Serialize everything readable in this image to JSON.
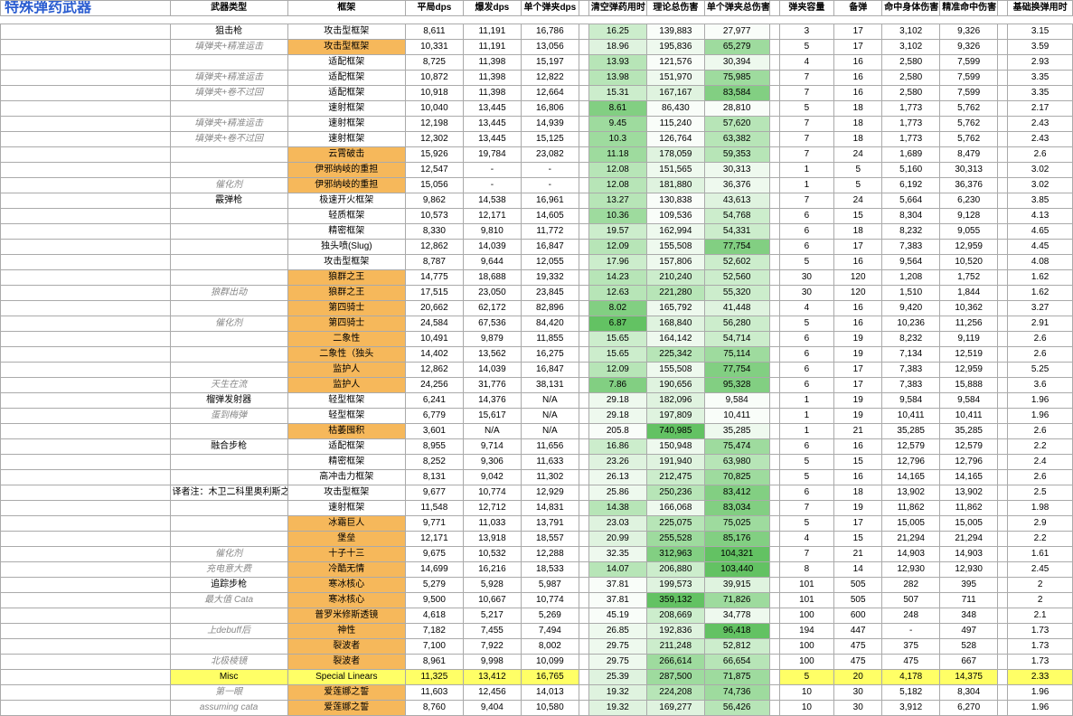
{
  "title": "特殊弹药武器",
  "headers": [
    "武器类型",
    "框架",
    "平局dps",
    "爆发dps",
    "单个弹夹dps",
    "",
    "清空弹药用时",
    "理论总伤害",
    "单个弹夹总伤害",
    "",
    "弹夹容量",
    "备弹",
    "命中身体伤害",
    "精准命中伤害",
    "",
    "基础换弹用时"
  ],
  "rows": [
    {
      "t": "狙击枪",
      "tc": "",
      "f": "攻击型框架",
      "fc": "",
      "c": [
        "8,611",
        "11,191",
        "16,786"
      ],
      "m": [
        "16.25",
        "139,883",
        "27,977"
      ],
      "mc": [
        "g3",
        "g0",
        "g0"
      ],
      "r": [
        "3",
        "17",
        "3,102",
        "9,326"
      ],
      "e": "3.15"
    },
    {
      "t": "填弹夹+精准运击",
      "tc": "it",
      "f": "攻击型框架",
      "fc": "oc",
      "c": [
        "10,331",
        "11,191",
        "13,056"
      ],
      "m": [
        "18.96",
        "195,836",
        "65,279"
      ],
      "mc": [
        "g2",
        "g1",
        "g5"
      ],
      "r": [
        "5",
        "17",
        "3,102",
        "9,326"
      ],
      "e": "3.59"
    },
    {
      "t": "",
      "tc": "",
      "f": "适配框架",
      "fc": "",
      "c": [
        "8,725",
        "11,398",
        "15,197"
      ],
      "m": [
        "13.93",
        "121,576",
        "30,394"
      ],
      "mc": [
        "g4",
        "g0",
        "g1"
      ],
      "r": [
        "4",
        "16",
        "2,580",
        "7,599"
      ],
      "e": "2.93"
    },
    {
      "t": "填弹夹+精准运击",
      "tc": "it",
      "f": "适配框架",
      "fc": "",
      "c": [
        "10,872",
        "11,398",
        "12,822"
      ],
      "m": [
        "13.98",
        "151,970",
        "75,985"
      ],
      "mc": [
        "g4",
        "g1",
        "g5"
      ],
      "r": [
        "7",
        "16",
        "2,580",
        "7,599"
      ],
      "e": "3.35"
    },
    {
      "t": "填弹夹+卷不过回",
      "tc": "it",
      "f": "适配框架",
      "fc": "",
      "c": [
        "10,918",
        "11,398",
        "12,664"
      ],
      "m": [
        "15.31",
        "167,167",
        "83,584"
      ],
      "mc": [
        "g3",
        "g2",
        "g6"
      ],
      "r": [
        "7",
        "16",
        "2,580",
        "7,599"
      ],
      "e": "3.35"
    },
    {
      "t": "",
      "tc": "",
      "f": "速射框架",
      "fc": "",
      "c": [
        "10,040",
        "13,445",
        "16,806"
      ],
      "m": [
        "8.61",
        "86,430",
        "28,810"
      ],
      "mc": [
        "g6",
        "g0",
        "g0"
      ],
      "r": [
        "5",
        "18",
        "1,773",
        "5,762"
      ],
      "e": "2.17"
    },
    {
      "t": "填弹夹+精准运击",
      "tc": "it",
      "f": "速射框架",
      "fc": "",
      "c": [
        "12,198",
        "13,445",
        "14,939"
      ],
      "m": [
        "9.45",
        "115,240",
        "57,620"
      ],
      "mc": [
        "g5",
        "g0",
        "g4"
      ],
      "r": [
        "7",
        "18",
        "1,773",
        "5,762"
      ],
      "e": "2.43"
    },
    {
      "t": "填弹夹+卷不过回",
      "tc": "it",
      "f": "速射框架",
      "fc": "",
      "c": [
        "12,302",
        "13,445",
        "15,125"
      ],
      "m": [
        "10.3",
        "126,764",
        "63,382"
      ],
      "mc": [
        "g5",
        "g0",
        "g4"
      ],
      "r": [
        "7",
        "18",
        "1,773",
        "5,762"
      ],
      "e": "2.43"
    },
    {
      "t": "",
      "tc": "",
      "f": "云霄破击",
      "fc": "oc",
      "c": [
        "15,926",
        "19,784",
        "23,082"
      ],
      "m": [
        "11.18",
        "178,059",
        "59,353"
      ],
      "mc": [
        "g5",
        "g2",
        "g4"
      ],
      "r": [
        "7",
        "24",
        "1,689",
        "8,479"
      ],
      "e": "2.6"
    },
    {
      "t": "",
      "tc": "",
      "f": "伊邪纳岐的重担",
      "fc": "oc",
      "c": [
        "12,547",
        "-",
        "-"
      ],
      "m": [
        "12.08",
        "151,565",
        "30,313"
      ],
      "mc": [
        "g4",
        "g1",
        "g1"
      ],
      "r": [
        "1",
        "5",
        "5,160",
        "30,313"
      ],
      "e": "3.02"
    },
    {
      "t": "催化剂",
      "tc": "it",
      "f": "伊邪纳岐的重担",
      "fc": "oc",
      "c": [
        "15,056",
        "-",
        "-"
      ],
      "m": [
        "12.08",
        "181,880",
        "36,376"
      ],
      "mc": [
        "g4",
        "g2",
        "g1"
      ],
      "r": [
        "1",
        "5",
        "6,192",
        "36,376"
      ],
      "e": "3.02"
    },
    {
      "t": "霰弹枪",
      "tc": "",
      "f": "极速开火框架",
      "fc": "",
      "c": [
        "9,862",
        "14,538",
        "16,961"
      ],
      "m": [
        "13.27",
        "130,838",
        "43,613"
      ],
      "mc": [
        "g4",
        "g0",
        "g2"
      ],
      "r": [
        "7",
        "24",
        "5,664",
        "6,230"
      ],
      "e": "3.85"
    },
    {
      "t": "",
      "tc": "",
      "f": "轻质框架",
      "fc": "",
      "c": [
        "10,573",
        "12,171",
        "14,605"
      ],
      "m": [
        "10.36",
        "109,536",
        "54,768"
      ],
      "mc": [
        "g5",
        "g0",
        "g3"
      ],
      "r": [
        "6",
        "15",
        "8,304",
        "9,128"
      ],
      "e": "4.13"
    },
    {
      "t": "",
      "tc": "",
      "f": "精密框架",
      "fc": "",
      "c": [
        "8,330",
        "9,810",
        "11,772"
      ],
      "m": [
        "19.57",
        "162,994",
        "54,331"
      ],
      "mc": [
        "g3",
        "g1",
        "g3"
      ],
      "r": [
        "6",
        "18",
        "8,232",
        "9,055"
      ],
      "e": "4.65"
    },
    {
      "t": "",
      "tc": "",
      "f": "独头喷(Slug)",
      "fc": "",
      "c": [
        "12,862",
        "14,039",
        "16,847"
      ],
      "m": [
        "12.09",
        "155,508",
        "77,754"
      ],
      "mc": [
        "g4",
        "g1",
        "g6"
      ],
      "r": [
        "6",
        "17",
        "7,383",
        "12,959"
      ],
      "e": "4.45"
    },
    {
      "t": "",
      "tc": "",
      "f": "攻击型框架",
      "fc": "",
      "c": [
        "8,787",
        "9,644",
        "12,055"
      ],
      "m": [
        "17.96",
        "157,806",
        "52,602"
      ],
      "mc": [
        "g3",
        "g1",
        "g3"
      ],
      "r": [
        "5",
        "16",
        "9,564",
        "10,520"
      ],
      "e": "4.08"
    },
    {
      "t": "",
      "tc": "",
      "f": "狼群之王",
      "fc": "oc",
      "c": [
        "14,775",
        "18,688",
        "19,332"
      ],
      "m": [
        "14.23",
        "210,240",
        "52,560"
      ],
      "mc": [
        "g4",
        "g3",
        "g3"
      ],
      "r": [
        "30",
        "120",
        "1,208",
        "1,752"
      ],
      "e": "1.62"
    },
    {
      "t": "狼群出动",
      "tc": "it",
      "f": "狼群之王",
      "fc": "oc",
      "c": [
        "17,515",
        "23,050",
        "23,845"
      ],
      "m": [
        "12.63",
        "221,280",
        "55,320"
      ],
      "mc": [
        "g4",
        "g4",
        "g3"
      ],
      "r": [
        "30",
        "120",
        "1,510",
        "1,844"
      ],
      "e": "1.62"
    },
    {
      "t": "",
      "tc": "",
      "f": "第四骑士",
      "fc": "oc",
      "c": [
        "20,662",
        "62,172",
        "82,896"
      ],
      "m": [
        "8.02",
        "165,792",
        "41,448"
      ],
      "mc": [
        "g6",
        "g1",
        "g2"
      ],
      "r": [
        "4",
        "16",
        "9,420",
        "10,362"
      ],
      "e": "3.27"
    },
    {
      "t": "催化剂",
      "tc": "it",
      "f": "第四骑士",
      "fc": "oc",
      "c": [
        "24,584",
        "67,536",
        "84,420"
      ],
      "m": [
        "6.87",
        "168,840",
        "56,280"
      ],
      "mc": [
        "g7",
        "g2",
        "g3"
      ],
      "r": [
        "5",
        "16",
        "10,236",
        "11,256"
      ],
      "e": "2.91"
    },
    {
      "t": "",
      "tc": "",
      "f": "二象性",
      "fc": "oc",
      "c": [
        "10,491",
        "9,879",
        "11,855"
      ],
      "m": [
        "15.65",
        "164,142",
        "54,714"
      ],
      "mc": [
        "g3",
        "g1",
        "g3"
      ],
      "r": [
        "6",
        "19",
        "8,232",
        "9,119"
      ],
      "e": "2.6"
    },
    {
      "t": "",
      "tc": "",
      "f": "二象性（独头",
      "fc": "oc",
      "c": [
        "14,402",
        "13,562",
        "16,275"
      ],
      "m": [
        "15.65",
        "225,342",
        "75,114"
      ],
      "mc": [
        "g3",
        "g4",
        "g5"
      ],
      "r": [
        "6",
        "19",
        "7,134",
        "12,519"
      ],
      "e": "2.6"
    },
    {
      "t": "",
      "tc": "",
      "f": "监护人",
      "fc": "oc",
      "c": [
        "12,862",
        "14,039",
        "16,847"
      ],
      "m": [
        "12.09",
        "155,508",
        "77,754"
      ],
      "mc": [
        "g4",
        "g1",
        "g6"
      ],
      "r": [
        "6",
        "17",
        "7,383",
        "12,959"
      ],
      "e": "5.25"
    },
    {
      "t": "天生在流",
      "tc": "it",
      "f": "监护人",
      "fc": "oc",
      "c": [
        "24,256",
        "31,776",
        "38,131"
      ],
      "m": [
        "7.86",
        "190,656",
        "95,328"
      ],
      "mc": [
        "g6",
        "g2",
        "g6"
      ],
      "r": [
        "6",
        "17",
        "7,383",
        "15,888"
      ],
      "e": "3.6"
    },
    {
      "t": "榴弹发射器",
      "tc": "",
      "f": "轻型框架",
      "fc": "",
      "c": [
        "6,241",
        "14,376",
        "N/A"
      ],
      "m": [
        "29.18",
        "182,096",
        "9,584"
      ],
      "mc": [
        "g1",
        "g2",
        "g0"
      ],
      "r": [
        "1",
        "19",
        "9,584",
        "9,584"
      ],
      "e": "1.96"
    },
    {
      "t": "蛋到梅弹",
      "tc": "it",
      "f": "轻型框架",
      "fc": "",
      "c": [
        "6,779",
        "15,617",
        "N/A"
      ],
      "m": [
        "29.18",
        "197,809",
        "10,411"
      ],
      "mc": [
        "g1",
        "g2",
        "g0"
      ],
      "r": [
        "1",
        "19",
        "10,411",
        "10,411"
      ],
      "e": "1.96"
    },
    {
      "t": "",
      "tc": "",
      "f": "枯萎囤积",
      "fc": "oc",
      "c": [
        "3,601",
        "N/A",
        "N/A"
      ],
      "m": [
        "205.8",
        "740,985",
        "35,285"
      ],
      "mc": [
        "g0",
        "g7",
        "g1"
      ],
      "r": [
        "1",
        "21",
        "35,285",
        "35,285"
      ],
      "e": "2.6"
    },
    {
      "t": "融合步枪",
      "tc": "",
      "f": "适配框架",
      "fc": "",
      "c": [
        "8,955",
        "9,714",
        "11,656"
      ],
      "m": [
        "16.86",
        "150,948",
        "75,474"
      ],
      "mc": [
        "g3",
        "g1",
        "g5"
      ],
      "r": [
        "6",
        "16",
        "12,579",
        "12,579"
      ],
      "e": "2.2"
    },
    {
      "t": "",
      "tc": "",
      "f": "精密框架",
      "fc": "",
      "c": [
        "8,252",
        "9,306",
        "11,633"
      ],
      "m": [
        "23.26",
        "191,940",
        "63,980"
      ],
      "mc": [
        "g2",
        "g2",
        "g4"
      ],
      "r": [
        "5",
        "15",
        "12,796",
        "12,796"
      ],
      "e": "2.4"
    },
    {
      "t": "",
      "tc": "",
      "f": "高冲击力框架",
      "fc": "",
      "c": [
        "8,131",
        "9,042",
        "11,302"
      ],
      "m": [
        "26.13",
        "212,475",
        "70,825"
      ],
      "mc": [
        "g1",
        "g3",
        "g5"
      ],
      "r": [
        "5",
        "16",
        "14,165",
        "14,165"
      ],
      "e": "2.6"
    },
    {
      "t": "译者注：木卫二科里奥利斯之力",
      "tc": "",
      "f": "攻击型框架",
      "fc": "",
      "c": [
        "9,677",
        "10,774",
        "12,929"
      ],
      "m": [
        "25.86",
        "250,236",
        "83,412"
      ],
      "mc": [
        "g1",
        "g4",
        "g6"
      ],
      "r": [
        "6",
        "18",
        "13,902",
        "13,902"
      ],
      "e": "2.5"
    },
    {
      "t": "",
      "tc": "",
      "f": "速射框架",
      "fc": "",
      "c": [
        "11,548",
        "12,712",
        "14,831"
      ],
      "m": [
        "14.38",
        "166,068",
        "83,034"
      ],
      "mc": [
        "g4",
        "g1",
        "g6"
      ],
      "r": [
        "7",
        "19",
        "11,862",
        "11,862"
      ],
      "e": "1.98"
    },
    {
      "t": "",
      "tc": "",
      "f": "冰霜巨人",
      "fc": "oc",
      "c": [
        "9,771",
        "11,033",
        "13,791"
      ],
      "m": [
        "23.03",
        "225,075",
        "75,025"
      ],
      "mc": [
        "g2",
        "g4",
        "g5"
      ],
      "r": [
        "5",
        "17",
        "15,005",
        "15,005"
      ],
      "e": "2.9"
    },
    {
      "t": "",
      "tc": "",
      "f": "堡垒",
      "fc": "oc",
      "c": [
        "12,171",
        "13,918",
        "18,557"
      ],
      "m": [
        "20.99",
        "255,528",
        "85,176"
      ],
      "mc": [
        "g2",
        "g5",
        "g6"
      ],
      "r": [
        "4",
        "15",
        "21,294",
        "21,294"
      ],
      "e": "2.2"
    },
    {
      "t": "催化剂",
      "tc": "it",
      "f": "十子十三",
      "fc": "oc",
      "c": [
        "9,675",
        "10,532",
        "12,288"
      ],
      "m": [
        "32.35",
        "312,963",
        "104,321"
      ],
      "mc": [
        "g1",
        "g6",
        "g7"
      ],
      "r": [
        "7",
        "21",
        "14,903",
        "14,903"
      ],
      "e": "1.61"
    },
    {
      "t": "充电意大费",
      "tc": "it",
      "f": "冷酷无情",
      "fc": "oc",
      "c": [
        "14,699",
        "16,216",
        "18,533"
      ],
      "m": [
        "14.07",
        "206,880",
        "103,440"
      ],
      "mc": [
        "g4",
        "g3",
        "g7"
      ],
      "r": [
        "8",
        "14",
        "12,930",
        "12,930"
      ],
      "e": "2.45"
    },
    {
      "t": "追踪步枪",
      "tc": "",
      "f": "寒冰核心",
      "fc": "oc",
      "c": [
        "5,279",
        "5,928",
        "5,987"
      ],
      "m": [
        "37.81",
        "199,573",
        "39,915"
      ],
      "mc": [
        "g0",
        "g2",
        "g2"
      ],
      "r": [
        "101",
        "505",
        "282",
        "395"
      ],
      "e": "2"
    },
    {
      "t": "最大值 Cata",
      "tc": "it",
      "f": "寒冰核心",
      "fc": "oc",
      "c": [
        "9,500",
        "10,667",
        "10,774"
      ],
      "m": [
        "37.81",
        "359,132",
        "71,826"
      ],
      "mc": [
        "g0",
        "g7",
        "g5"
      ],
      "r": [
        "101",
        "505",
        "507",
        "711"
      ],
      "e": "2"
    },
    {
      "t": "",
      "tc": "",
      "f": "普罗米修斯透镜",
      "fc": "oc",
      "c": [
        "4,618",
        "5,217",
        "5,269"
      ],
      "m": [
        "45.19",
        "208,669",
        "34,778"
      ],
      "mc": [
        "g0",
        "g3",
        "g1"
      ],
      "r": [
        "100",
        "600",
        "248",
        "348"
      ],
      "e": "2.1"
    },
    {
      "t": "上debuff后",
      "tc": "it",
      "f": "神性",
      "fc": "oc",
      "c": [
        "7,182",
        "7,455",
        "7,494"
      ],
      "m": [
        "26.85",
        "192,836",
        "96,418"
      ],
      "mc": [
        "g1",
        "g2",
        "g7"
      ],
      "r": [
        "194",
        "447",
        "-",
        "497"
      ],
      "e": "1.73"
    },
    {
      "t": "",
      "tc": "",
      "f": "裂波者",
      "fc": "oc",
      "c": [
        "7,100",
        "7,922",
        "8,002"
      ],
      "m": [
        "29.75",
        "211,248",
        "52,812"
      ],
      "mc": [
        "g1",
        "g3",
        "g3"
      ],
      "r": [
        "100",
        "475",
        "375",
        "528"
      ],
      "e": "1.73"
    },
    {
      "t": "北极棱镜",
      "tc": "it",
      "f": "裂波者",
      "fc": "oc",
      "c": [
        "8,961",
        "9,998",
        "10,099"
      ],
      "m": [
        "29.75",
        "266,614",
        "66,654"
      ],
      "mc": [
        "g1",
        "g5",
        "g4"
      ],
      "r": [
        "100",
        "475",
        "475",
        "667"
      ],
      "e": "1.73"
    },
    {
      "t": "Misc",
      "tc": "",
      "f": "Special Linears",
      "fc": "yc",
      "c": [
        "11,325",
        "13,412",
        "16,765"
      ],
      "m": [
        "25.39",
        "287,500",
        "71,875"
      ],
      "mc": [
        "g2",
        "g5",
        "g5"
      ],
      "r": [
        "5",
        "20",
        "4,178",
        "14,375"
      ],
      "e": "2.33",
      "ec": "yc",
      "rc": "yc",
      "cc": "yc",
      "tc2": "yc"
    },
    {
      "t": "第一眼",
      "tc": "it",
      "f": "爱莲娜之誓",
      "fc": "oc",
      "c": [
        "11,603",
        "12,456",
        "14,013"
      ],
      "m": [
        "19.32",
        "224,208",
        "74,736"
      ],
      "mc": [
        "g2",
        "g4",
        "g5"
      ],
      "r": [
        "10",
        "30",
        "5,182",
        "8,304"
      ],
      "e": "1.96"
    },
    {
      "t": "assuming cata",
      "tc": "it",
      "f": "爱莲娜之誓",
      "fc": "oc",
      "c": [
        "8,760",
        "9,404",
        "10,580"
      ],
      "m": [
        "19.32",
        "169,277",
        "56,426"
      ],
      "mc": [
        "g2",
        "g2",
        "g4"
      ],
      "r": [
        "10",
        "30",
        "3,912",
        "6,270"
      ],
      "e": "1.96"
    }
  ]
}
